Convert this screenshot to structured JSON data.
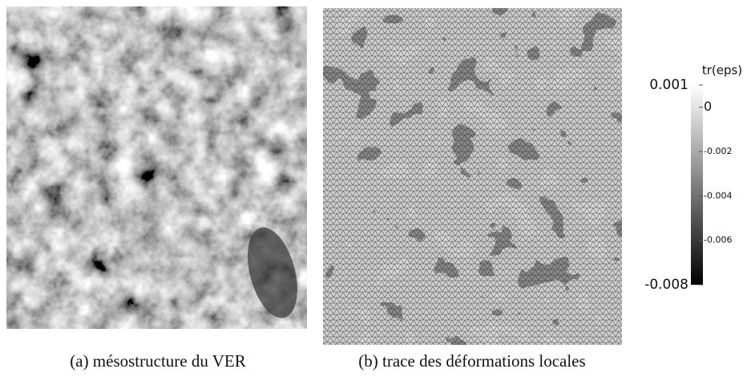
{
  "figure": {
    "captions": [
      "(a) mésostructure du VER",
      "(b) trace des déformations locales"
    ],
    "colorbar": {
      "title": "tr(eps)",
      "range": [
        -0.008,
        0.001
      ],
      "ticks": [
        0.001,
        0,
        -0.002,
        -0.004,
        -0.006,
        -0.008
      ]
    }
  }
}
